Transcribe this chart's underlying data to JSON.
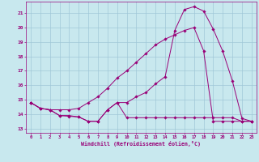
{
  "xlabel": "Windchill (Refroidissement éolien,°C)",
  "bg_color": "#c8e8ee",
  "grid_color": "#a0c8d8",
  "line_color": "#990077",
  "x_ticks": [
    0,
    1,
    2,
    3,
    4,
    5,
    6,
    7,
    8,
    9,
    10,
    11,
    12,
    13,
    14,
    15,
    16,
    17,
    18,
    19,
    20,
    21,
    22,
    23
  ],
  "y_ticks": [
    13,
    14,
    15,
    16,
    17,
    18,
    19,
    20,
    21
  ],
  "ylim": [
    12.7,
    21.8
  ],
  "xlim": [
    -0.5,
    23.5
  ],
  "line1_x": [
    0,
    1,
    2,
    3,
    4,
    5,
    6,
    7,
    8,
    9,
    10,
    11,
    12,
    13,
    14,
    15,
    16,
    17,
    18,
    19,
    20,
    21,
    22,
    23
  ],
  "line1_y": [
    14.8,
    14.4,
    14.3,
    13.9,
    13.9,
    13.8,
    13.5,
    13.5,
    14.3,
    14.8,
    14.8,
    15.2,
    15.5,
    16.1,
    16.6,
    19.8,
    21.25,
    21.45,
    21.15,
    19.9,
    18.35,
    16.3,
    13.7,
    13.5
  ],
  "line2_x": [
    0,
    1,
    2,
    3,
    4,
    5,
    6,
    7,
    8,
    9,
    10,
    11,
    12,
    13,
    14,
    15,
    16,
    17,
    18,
    19,
    20,
    21,
    22,
    23
  ],
  "line2_y": [
    14.8,
    14.4,
    14.3,
    13.9,
    13.85,
    13.8,
    13.5,
    13.5,
    14.3,
    14.8,
    13.75,
    13.75,
    13.75,
    13.75,
    13.75,
    13.75,
    13.75,
    13.75,
    13.75,
    13.75,
    13.75,
    13.75,
    13.5,
    13.5
  ],
  "line3_x": [
    0,
    1,
    2,
    3,
    4,
    5,
    6,
    7,
    8,
    9,
    10,
    11,
    12,
    13,
    14,
    15,
    16,
    17,
    18,
    19,
    20,
    21,
    22,
    23
  ],
  "line3_y": [
    14.8,
    14.4,
    14.3,
    14.3,
    14.3,
    14.4,
    14.8,
    15.2,
    15.8,
    16.5,
    17.0,
    17.6,
    18.2,
    18.8,
    19.2,
    19.5,
    19.8,
    20.0,
    18.4,
    13.5,
    13.5,
    13.5,
    13.5,
    13.5
  ]
}
